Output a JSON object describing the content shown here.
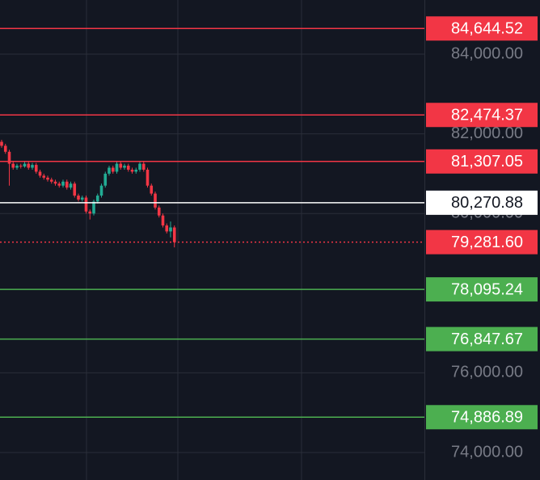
{
  "chart_data": {
    "type": "candlestick",
    "ylim": [
      73310,
      85360
    ],
    "yticks": [
      {
        "value": 84000,
        "label": "84,000.00"
      },
      {
        "value": 82000,
        "label": "82,000.00"
      },
      {
        "value": 80000,
        "label": "80,000.00"
      },
      {
        "value": 76000,
        "label": "76,000.00"
      },
      {
        "value": 74000,
        "label": "74,000.00"
      }
    ],
    "grid": true,
    "up_color": "#22ab94",
    "down_color": "#f23645",
    "open": [
      81800,
      81700,
      81550,
      81250,
      81150,
      81200,
      81180,
      81250,
      81150,
      81220,
      81050,
      80950,
      80900,
      80850,
      80800,
      80750,
      80700,
      80800,
      80650,
      80750,
      80450,
      80350,
      80400,
      80050,
      80000,
      80300,
      80450,
      80700,
      81000,
      81150,
      81050,
      81250,
      81150,
      81200,
      81100,
      81050,
      81100,
      81250,
      81100,
      80700,
      80500,
      80150,
      79950,
      79700,
      79550,
      79650
    ],
    "high": [
      81850,
      81750,
      81600,
      81300,
      81250,
      81250,
      81300,
      81300,
      81270,
      81270,
      81100,
      81000,
      80950,
      80900,
      80850,
      80800,
      80850,
      80850,
      80800,
      80800,
      80500,
      80450,
      80450,
      80100,
      80350,
      80500,
      80750,
      81050,
      81200,
      81200,
      81300,
      81300,
      81250,
      81250,
      81150,
      81150,
      81300,
      81300,
      81150,
      80750,
      80550,
      80200,
      80000,
      79750,
      79800,
      79700
    ],
    "low": [
      81650,
      81500,
      80700,
      81100,
      81100,
      81130,
      81150,
      81100,
      81100,
      81000,
      80900,
      80850,
      80800,
      80750,
      80700,
      80650,
      80650,
      80600,
      80600,
      80400,
      80300,
      80300,
      80000,
      79850,
      79950,
      80250,
      80400,
      80650,
      80950,
      81000,
      81000,
      81100,
      81100,
      81050,
      81000,
      81000,
      81050,
      81050,
      80650,
      80450,
      80100,
      79900,
      79650,
      79500,
      79400,
      79150
    ],
    "close": [
      81700,
      81550,
      81250,
      81150,
      81200,
      81180,
      81250,
      81150,
      81220,
      81050,
      80950,
      80900,
      80850,
      80800,
      80750,
      80700,
      80800,
      80650,
      80750,
      80450,
      80350,
      80400,
      80050,
      80000,
      80300,
      80450,
      80700,
      81000,
      81150,
      81050,
      81250,
      81150,
      81200,
      81100,
      81050,
      81100,
      81250,
      81100,
      80700,
      80500,
      80150,
      79950,
      79700,
      79550,
      79650,
      79280
    ],
    "levels": [
      {
        "value": 84644.52,
        "label": "84,644.52",
        "color": "#f23645",
        "text_color": "#ffffff",
        "style": "solid"
      },
      {
        "value": 82474.37,
        "label": "82,474.37",
        "color": "#f23645",
        "text_color": "#ffffff",
        "style": "solid"
      },
      {
        "value": 81307.05,
        "label": "81,307.05",
        "color": "#f23645",
        "text_color": "#ffffff",
        "style": "solid"
      },
      {
        "value": 80270.88,
        "label": "80,270.88",
        "color": "#ffffff",
        "text_color": "#131722",
        "style": "solid"
      },
      {
        "value": 79281.6,
        "label": "79,281.60",
        "color": "#f23645",
        "text_color": "#ffffff",
        "style": "dotted"
      },
      {
        "value": 78095.24,
        "label": "78,095.24",
        "color": "#4caf50",
        "text_color": "#ffffff",
        "style": "solid"
      },
      {
        "value": 76847.67,
        "label": "76,847.67",
        "color": "#4caf50",
        "text_color": "#ffffff",
        "style": "solid"
      },
      {
        "value": 74886.89,
        "label": "74,886.89",
        "color": "#4caf50",
        "text_color": "#ffffff",
        "style": "solid"
      }
    ]
  }
}
